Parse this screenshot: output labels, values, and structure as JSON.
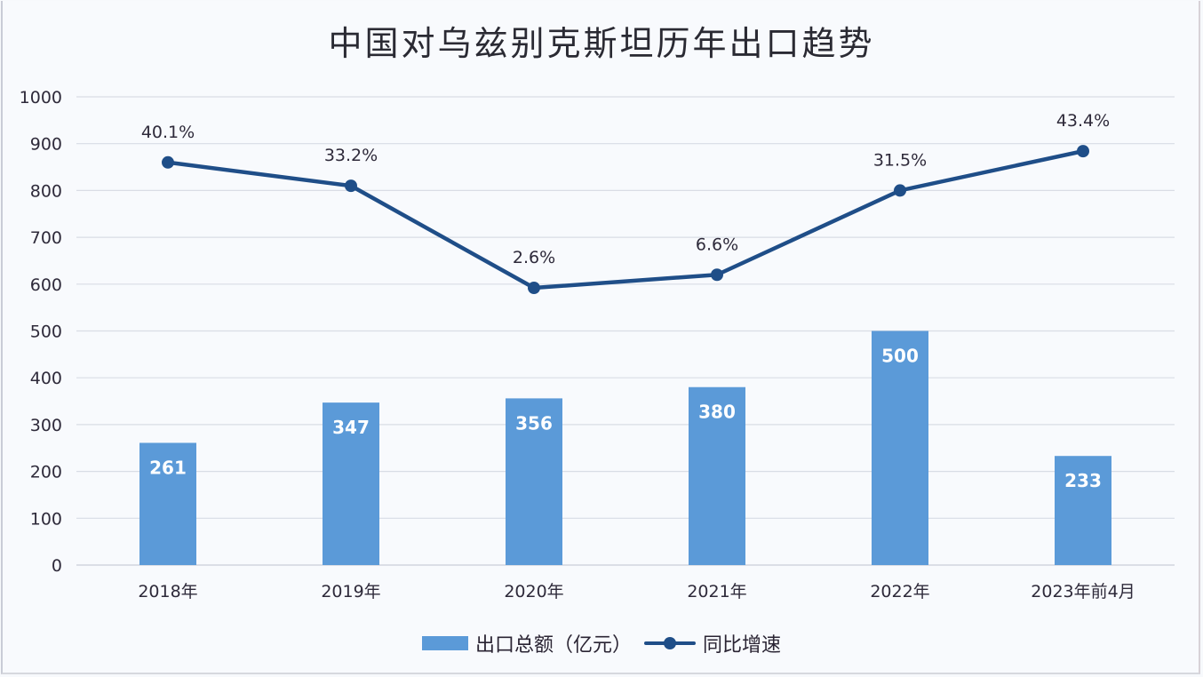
{
  "chart_data": {
    "type": "bar+line",
    "title": "中国对乌兹别克斯坦历年出口趋势",
    "categories": [
      "2018年",
      "2019年",
      "2020年",
      "2021年",
      "2022年",
      "2023年前4月"
    ],
    "series": [
      {
        "name": "出口总额（亿元）",
        "type": "bar",
        "color": "#5b9ad8",
        "values": [
          261,
          347,
          356,
          380,
          500,
          233
        ],
        "labels": [
          "261",
          "347",
          "356",
          "380",
          "500",
          "233"
        ]
      },
      {
        "name": "同比增速",
        "type": "line",
        "color": "#1f4e88",
        "values": [
          40.1,
          33.2,
          2.6,
          6.6,
          31.5,
          43.4
        ],
        "labels": [
          "40.1%",
          "33.2%",
          "2.6%",
          "6.6%",
          "31.5%",
          "43.4%"
        ],
        "plot_y_on_primary_axis": [
          860,
          810,
          592,
          620,
          800,
          884
        ]
      }
    ],
    "xlabel": "",
    "ylabel": "",
    "ylim": [
      0,
      1000
    ],
    "yticks": [
      "0",
      "100",
      "200",
      "300",
      "400",
      "500",
      "600",
      "700",
      "800",
      "900",
      "1000"
    ],
    "grid": true,
    "legend_position": "bottom"
  },
  "legend": {
    "bar_label": "出口总额（亿元）",
    "line_label": "同比增速"
  }
}
